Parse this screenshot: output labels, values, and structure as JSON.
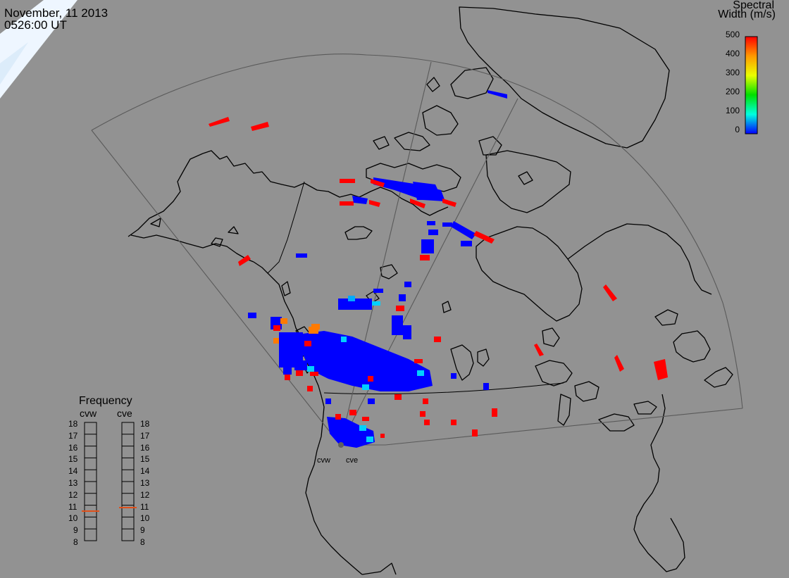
{
  "header": {
    "date": "November, 11 2013",
    "time": "0526:00 UT"
  },
  "colorbar": {
    "title_line1": "Spectral",
    "title_line2": "Width (m/s)",
    "ticks": [
      "500",
      "400",
      "300",
      "200",
      "100",
      "0"
    ],
    "colors": [
      "#ff0000",
      "#ff9900",
      "#eaff00",
      "#00e000",
      "#00ffe0",
      "#0000ff"
    ]
  },
  "frequency_panel": {
    "title": "Frequency",
    "left_label": "cvw",
    "right_label": "cve",
    "ticks": [
      "18",
      "17",
      "16",
      "15",
      "14",
      "13",
      "12",
      "11",
      "10",
      "9",
      "8"
    ],
    "cvw_value_mhz": 10.5,
    "cve_value_mhz": 10.8,
    "marker_color": "#e0501a"
  },
  "radar_sites": {
    "west": "cvw",
    "east": "cve"
  },
  "colors": {
    "background": "#929292",
    "land": "#929292",
    "coastline": "#000000",
    "fov_outline": "#505050",
    "echo_low": "#0000ff",
    "echo_high": "#ff0000",
    "echo_mid_cyan": "#00d0ff",
    "echo_mid_orange": "#ff7a00"
  }
}
